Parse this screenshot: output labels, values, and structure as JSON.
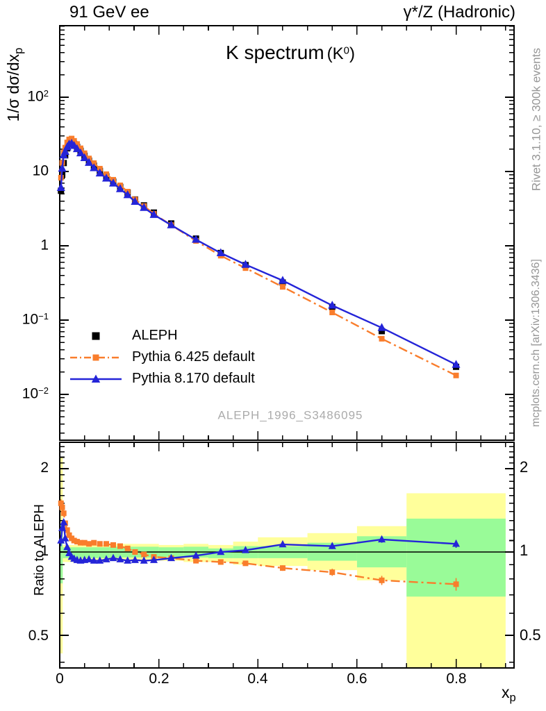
{
  "header": {
    "left": "91 GeV ee",
    "right": "γ*/Z (Hadronic)"
  },
  "title": {
    "main": "K spectrum",
    "paren_pre": "(K",
    "paren_sup": "0",
    "paren_post": ")"
  },
  "watermark": "ALEPH_1996_S3486095",
  "credits": {
    "top": "Rivet 3.1.10, ≥ 300k events",
    "bottom": "mcplots.cern.ch [arXiv:1306.3436]"
  },
  "axes": {
    "ylabel": {
      "base": "1/σ dσ/dx",
      "sub": "p"
    },
    "ratio_label": "Ratio to ALEPH",
    "xlabel": {
      "base": "x",
      "sub": "p"
    },
    "yticks_top": [
      {
        "base": "10",
        "exp": "2"
      },
      {
        "base": "10",
        "exp": ""
      },
      {
        "base": "1",
        "exp": ""
      },
      {
        "base": "10",
        "exp": "−1"
      },
      {
        "base": "10",
        "exp": "−2"
      }
    ],
    "yticks_ratio": [
      "2",
      "1",
      "0.5"
    ],
    "xticks": [
      "0",
      "0.2",
      "0.4",
      "0.6",
      "0.8"
    ]
  },
  "legend": [
    {
      "label": "ALEPH",
      "marker": "filled-square",
      "color": "#000000"
    },
    {
      "label": "Pythia 6.425 default",
      "marker": "square-on-dashdot-line",
      "color": "#f97d2c"
    },
    {
      "label": "Pythia 8.170 default",
      "marker": "triangle-on-solid-line",
      "color": "#2424d8"
    }
  ],
  "colors": {
    "aleph": "#000000",
    "pythia6": "#f97d2c",
    "pythia8": "#2424d8",
    "band_green": "#99fb98",
    "band_yellow": "#ffff9b",
    "credits_gray": "#969696",
    "watermark_gray": "#ababab"
  },
  "chart_data": {
    "type": "line",
    "title": "K spectrum (K⁰)",
    "xlabel": "x_p",
    "ylabel": "1/σ dσ/dx_p",
    "ratio_ylabel": "Ratio to ALEPH",
    "x_range": [
      0,
      0.917
    ],
    "y_range_top_log": [
      0.0024,
      900
    ],
    "y_range_ratio_log": [
      0.38,
      2.53
    ],
    "x": [
      0.0025,
      0.005,
      0.008,
      0.011,
      0.015,
      0.019,
      0.024,
      0.029,
      0.035,
      0.042,
      0.05,
      0.059,
      0.069,
      0.081,
      0.094,
      0.108,
      0.122,
      0.137,
      0.152,
      0.17,
      0.19,
      0.225,
      0.275,
      0.325,
      0.375,
      0.45,
      0.55,
      0.65,
      0.8
    ],
    "series": [
      {
        "name": "ALEPH",
        "values": [
          5.5,
          9.0,
          13.0,
          16.5,
          20.5,
          23.5,
          24.8,
          23.5,
          21.5,
          19.0,
          16.3,
          14.0,
          12.0,
          10.2,
          8.6,
          7.3,
          6.2,
          5.2,
          4.2,
          3.5,
          2.8,
          2.0,
          1.25,
          0.8,
          0.55,
          0.32,
          0.15,
          0.071,
          0.0235
        ],
        "yerr_rel": [
          0.06,
          0.05,
          0.04,
          0.03,
          0.025,
          0.02,
          0.02,
          0.02,
          0.02,
          0.02,
          0.02,
          0.02,
          0.02,
          0.02,
          0.02,
          0.02,
          0.02,
          0.02,
          0.02,
          0.022,
          0.025,
          0.025,
          0.03,
          0.03,
          0.035,
          0.04,
          0.05,
          0.06,
          0.08
        ]
      },
      {
        "name": "Pythia 6.425 default",
        "ratio_to_aleph": [
          1.5,
          1.45,
          1.38,
          1.27,
          1.2,
          1.15,
          1.12,
          1.1,
          1.09,
          1.08,
          1.08,
          1.07,
          1.08,
          1.07,
          1.07,
          1.06,
          1.05,
          1.03,
          1.0,
          0.98,
          0.96,
          0.95,
          0.93,
          0.92,
          0.91,
          0.875,
          0.845,
          0.79,
          0.765
        ],
        "ratio_err": [
          0.05,
          0.04,
          0.03,
          0.025,
          0.02,
          0.015,
          0.012,
          0.01,
          0.01,
          0.01,
          0.01,
          0.01,
          0.01,
          0.01,
          0.01,
          0.01,
          0.01,
          0.01,
          0.01,
          0.012,
          0.012,
          0.012,
          0.015,
          0.015,
          0.018,
          0.02,
          0.025,
          0.03,
          0.04
        ]
      },
      {
        "name": "Pythia 8.170 default",
        "ratio_to_aleph": [
          1.1,
          1.22,
          1.28,
          1.12,
          1.04,
          0.99,
          0.96,
          0.945,
          0.935,
          0.93,
          0.935,
          0.94,
          0.93,
          0.93,
          0.94,
          0.95,
          0.94,
          0.93,
          0.935,
          0.93,
          0.935,
          0.95,
          0.97,
          1.0,
          1.015,
          1.065,
          1.05,
          1.11,
          1.07
        ],
        "ratio_err": [
          0.05,
          0.04,
          0.03,
          0.025,
          0.02,
          0.015,
          0.012,
          0.01,
          0.01,
          0.01,
          0.01,
          0.01,
          0.01,
          0.01,
          0.01,
          0.01,
          0.01,
          0.01,
          0.01,
          0.012,
          0.012,
          0.012,
          0.015,
          0.015,
          0.018,
          0.02,
          0.025,
          0.03,
          0.035
        ]
      }
    ],
    "ratio_reference_line": 1.0,
    "ratio_bands": [
      {
        "x0": 0.0,
        "x1": 0.006,
        "yellow": [
          0.43,
          2.2
        ],
        "green": [
          0.77,
          1.25
        ]
      },
      {
        "x0": 0.006,
        "x1": 0.1,
        "yellow": [
          0.92,
          1.06
        ],
        "green": [
          0.95,
          1.04
        ]
      },
      {
        "x0": 0.1,
        "x1": 0.2,
        "yellow": [
          0.93,
          1.07
        ],
        "green": [
          0.955,
          1.045
        ]
      },
      {
        "x0": 0.2,
        "x1": 0.25,
        "yellow": [
          0.93,
          1.06
        ],
        "green": [
          0.96,
          1.04
        ]
      },
      {
        "x0": 0.25,
        "x1": 0.3,
        "yellow": [
          0.92,
          1.07
        ],
        "green": [
          0.955,
          1.045
        ]
      },
      {
        "x0": 0.3,
        "x1": 0.35,
        "yellow": [
          0.92,
          1.06
        ],
        "green": [
          0.95,
          1.03
        ]
      },
      {
        "x0": 0.35,
        "x1": 0.4,
        "yellow": [
          0.9,
          1.09
        ],
        "green": [
          0.95,
          1.05
        ]
      },
      {
        "x0": 0.4,
        "x1": 0.5,
        "yellow": [
          0.89,
          1.13
        ],
        "green": [
          0.95,
          1.05
        ]
      },
      {
        "x0": 0.5,
        "x1": 0.6,
        "yellow": [
          0.86,
          1.17
        ],
        "green": [
          0.93,
          1.08
        ]
      },
      {
        "x0": 0.6,
        "x1": 0.7,
        "yellow": [
          0.79,
          1.24
        ],
        "green": [
          0.88,
          1.14
        ]
      },
      {
        "x0": 0.7,
        "x1": 0.9,
        "yellow": [
          0.38,
          1.63
        ],
        "green": [
          0.69,
          1.32
        ]
      }
    ]
  }
}
